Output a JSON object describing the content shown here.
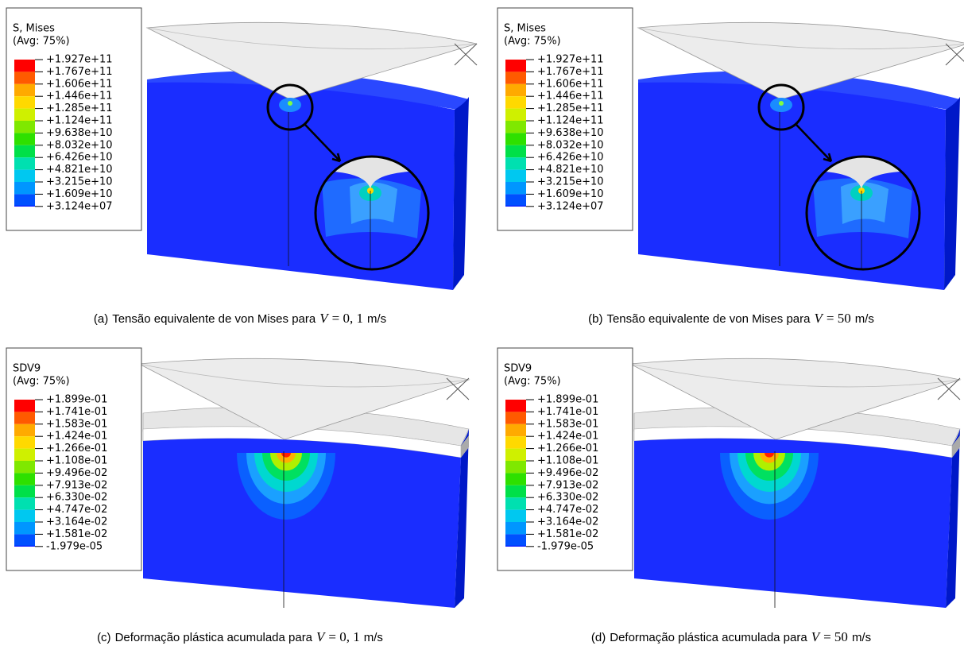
{
  "panels": [
    {
      "legend_title": [
        "S, Mises",
        "(Avg: 75%)"
      ],
      "legend_labels": [
        "+1.927e+11",
        "+1.767e+11",
        "+1.606e+11",
        "+1.446e+11",
        "+1.285e+11",
        "+1.124e+11",
        "+9.638e+10",
        "+8.032e+10",
        "+6.426e+10",
        "+4.821e+10",
        "+3.215e+10",
        "+1.609e+10",
        "+3.124e+07"
      ],
      "caption": {
        "label": "(a)",
        "text": "Tensão equivalente de von Mises para",
        "var": "V",
        "expr": "= 0, 1",
        "unit": "m/s"
      }
    },
    {
      "legend_title": [
        "S, Mises",
        "(Avg: 75%)"
      ],
      "legend_labels": [
        "+1.927e+11",
        "+1.767e+11",
        "+1.606e+11",
        "+1.446e+11",
        "+1.285e+11",
        "+1.124e+11",
        "+9.638e+10",
        "+8.032e+10",
        "+6.426e+10",
        "+4.821e+10",
        "+3.215e+10",
        "+1.609e+10",
        "+3.124e+07"
      ],
      "caption": {
        "label": "(b)",
        "text": "Tensão equivalente de von Mises para",
        "var": "V",
        "expr": "= 50",
        "unit": "m/s"
      }
    },
    {
      "legend_title": [
        "SDV9",
        "(Avg: 75%)"
      ],
      "legend_labels": [
        "+1.899e-01",
        "+1.741e-01",
        "+1.583e-01",
        "+1.424e-01",
        "+1.266e-01",
        "+1.108e-01",
        "+9.496e-02",
        "+7.913e-02",
        "+6.330e-02",
        "+4.747e-02",
        "+3.164e-02",
        "+1.581e-02",
        "-1.979e-05"
      ],
      "caption": {
        "label": "(c)",
        "text": "Deformação plástica acumulada para",
        "var": "V",
        "expr": "= 0, 1",
        "unit": "m/s"
      }
    },
    {
      "legend_title": [
        "SDV9",
        "(Avg: 75%)"
      ],
      "legend_labels": [
        "+1.899e-01",
        "+1.741e-01",
        "+1.583e-01",
        "+1.424e-01",
        "+1.266e-01",
        "+1.108e-01",
        "+9.496e-02",
        "+7.913e-02",
        "+6.330e-02",
        "+4.747e-02",
        "+3.164e-02",
        "+1.581e-02",
        "-1.979e-05"
      ],
      "caption": {
        "label": "(d)",
        "text": "Deformação plástica acumulada para",
        "var": "V",
        "expr": "= 50",
        "unit": "m/s"
      }
    }
  ]
}
